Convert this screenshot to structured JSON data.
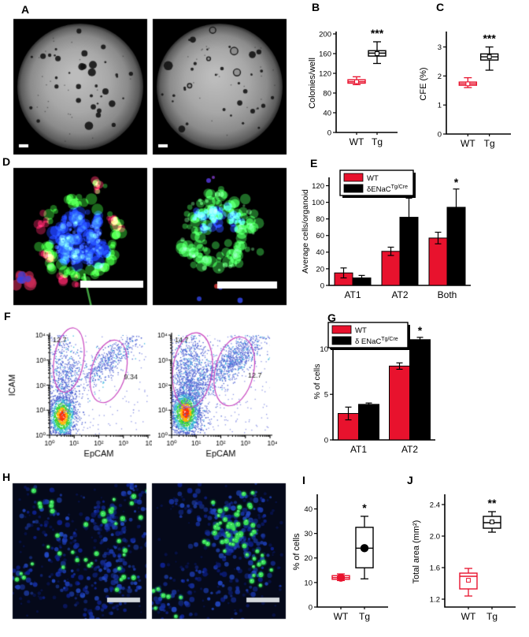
{
  "figure": {
    "background": "#ffffff"
  },
  "colors": {
    "wt_red": "#e8122d",
    "tg_black": "#000000",
    "gate_magenta": "#c946c0"
  },
  "panels": {
    "A": {
      "label": "A",
      "type": "microscopy",
      "images": 2,
      "scale_bars": 2
    },
    "B": {
      "label": "B",
      "type": "box-plot"
    },
    "C": {
      "label": "C",
      "type": "box-plot"
    },
    "D": {
      "label": "D",
      "type": "fluorescence-microscopy",
      "images": 2,
      "scale_bars": 2
    },
    "E": {
      "label": "E",
      "type": "bar-chart"
    },
    "F": {
      "label": "F",
      "type": "flow-cytometry",
      "plots": 2
    },
    "G": {
      "label": "G",
      "type": "bar-chart"
    },
    "H": {
      "label": "H",
      "type": "fluorescence-microscopy",
      "images": 2,
      "scale_bars": 2
    },
    "I": {
      "label": "I",
      "type": "box-plot"
    },
    "J": {
      "label": "J",
      "type": "box-plot"
    }
  },
  "chart_data": {
    "B": {
      "type": "box",
      "ylabel": "Colonies/well",
      "ylim": [
        0,
        200
      ],
      "yticks": [
        0,
        40,
        80,
        120,
        160,
        200
      ],
      "ytick_decimals": 0,
      "categories": [
        "WT",
        "Tg"
      ],
      "series": [
        {
          "category": "WT",
          "color": "#e8122d",
          "whisker_low": 97,
          "q1": 100,
          "median": 103,
          "q3": 107,
          "whisker_high": 113,
          "mean": 103,
          "mean_marker": "square"
        },
        {
          "category": "Tg",
          "color": "#000000",
          "whisker_low": 140,
          "q1": 155,
          "median": 161,
          "q3": 166,
          "whisker_high": 184,
          "mean": 160,
          "mean_marker": "square"
        }
      ],
      "significance": {
        "label": "***",
        "category": "Tg"
      }
    },
    "C": {
      "type": "box",
      "ylabel": "CFE (%)",
      "ylim": [
        0,
        3.45
      ],
      "yticks": [
        0,
        1,
        2,
        3
      ],
      "ytick_decimals": 0,
      "categories": [
        "WT",
        "Tg"
      ],
      "series": [
        {
          "category": "WT",
          "color": "#e8122d",
          "whisker_low": 1.6,
          "q1": 1.68,
          "median": 1.73,
          "q3": 1.79,
          "whisker_high": 1.94,
          "mean": 1.73,
          "mean_marker": "square"
        },
        {
          "category": "Tg",
          "color": "#000000",
          "whisker_low": 2.2,
          "q1": 2.55,
          "median": 2.66,
          "q3": 2.76,
          "whisker_high": 3.0,
          "mean": 2.66,
          "mean_marker": "square"
        }
      ],
      "significance": {
        "label": "***",
        "category": "Tg"
      }
    },
    "E": {
      "type": "bar",
      "ylabel": "Average cells/organoid",
      "ylim": [
        0,
        130
      ],
      "yticks": [
        0,
        20,
        40,
        60,
        80,
        100,
        120
      ],
      "ytick_decimals": 0,
      "categories": [
        "AT1",
        "AT2",
        "Both"
      ],
      "series": [
        {
          "name": "WT",
          "name_sup": "",
          "color": "#e8122d",
          "values": [
            15,
            41,
            57
          ],
          "errors": [
            6,
            5,
            7
          ]
        },
        {
          "name": "δENaC",
          "name_sup": "Tg/Cre",
          "color": "#000000",
          "values": [
            9,
            82,
            94
          ],
          "errors": [
            3,
            23,
            22
          ]
        }
      ],
      "significance": [
        {
          "label": "*",
          "category": "AT2"
        },
        {
          "label": "*",
          "category": "Both"
        }
      ],
      "legend_position": "top-left"
    },
    "F": {
      "type": "flow",
      "plots": [
        {
          "xlabel": "EpCAM",
          "ylabel": "ICAM",
          "x_ticks": [
            "10⁰",
            "10¹",
            "10²",
            "10³",
            "10⁴"
          ],
          "y_ticks": [
            "10⁰",
            "10¹",
            "10²",
            "10³",
            "10⁴"
          ],
          "gates": [
            {
              "label": "12.7"
            },
            {
              "label": "9.34"
            }
          ]
        },
        {
          "xlabel": "EpCAM",
          "ylabel": "",
          "x_ticks": [
            "10⁰",
            "10¹",
            "10²",
            "10³",
            "10⁴"
          ],
          "y_ticks": [
            "10⁰",
            "10¹",
            "10²",
            "10³",
            "10⁴"
          ],
          "gates": [
            {
              "label": "14.7"
            },
            {
              "label": "12.7"
            }
          ]
        }
      ]
    },
    "G": {
      "type": "bar",
      "ylabel": "% of cells",
      "ylim": [
        0,
        12.8
      ],
      "yticks": [
        0,
        5,
        10
      ],
      "ytick_decimals": 0,
      "categories": [
        "AT1",
        "AT2"
      ],
      "series": [
        {
          "name": "WT",
          "name_sup": "",
          "color": "#e8122d",
          "values": [
            2.9,
            8.1
          ],
          "errors": [
            0.7,
            0.35
          ]
        },
        {
          "name": "δ ENaC",
          "name_sup": "Tg/Cre",
          "color": "#000000",
          "values": [
            3.9,
            11
          ],
          "errors": [
            0.15,
            0.25
          ]
        }
      ],
      "significance": [
        {
          "label": "*",
          "category": "AT2"
        }
      ],
      "legend_position": "top-left"
    },
    "I": {
      "type": "box",
      "ylabel": "% of cells",
      "ylim": [
        0,
        45
      ],
      "yticks": [
        0,
        10,
        20,
        30,
        40
      ],
      "ytick_decimals": 0,
      "categories": [
        "WT",
        "Tg"
      ],
      "series": [
        {
          "category": "WT",
          "color": "#e8122d",
          "whisker_low": 10.8,
          "q1": 11.3,
          "median": 12,
          "q3": 12.8,
          "whisker_high": 13.5,
          "mean": 12,
          "mean_marker": "circle"
        },
        {
          "category": "Tg",
          "color": "#000000",
          "whisker_low": 11.5,
          "q1": 16,
          "median": 24,
          "q3": 32.5,
          "whisker_high": 37,
          "mean": 24,
          "mean_marker": "circle"
        }
      ],
      "significance": {
        "label": "*",
        "category": "Tg"
      }
    },
    "J": {
      "type": "box",
      "ylabel": "Total area (mm²)",
      "ylim": [
        1.1,
        2.5
      ],
      "yticks": [
        1.2,
        1.6,
        2.0,
        2.4
      ],
      "ytick_decimals": 1,
      "categories": [
        "WT",
        "Tg"
      ],
      "series": [
        {
          "category": "WT",
          "color": "#e8122d",
          "whisker_low": 1.24,
          "q1": 1.33,
          "median": 1.49,
          "q3": 1.53,
          "whisker_high": 1.59,
          "mean": 1.44,
          "mean_marker": "square"
        },
        {
          "category": "Tg",
          "color": "#000000",
          "whisker_low": 2.05,
          "q1": 2.1,
          "median": 2.17,
          "q3": 2.25,
          "whisker_high": 2.31,
          "mean": 2.18,
          "mean_marker": "square"
        }
      ],
      "significance": {
        "label": "**",
        "category": "Tg"
      }
    }
  }
}
